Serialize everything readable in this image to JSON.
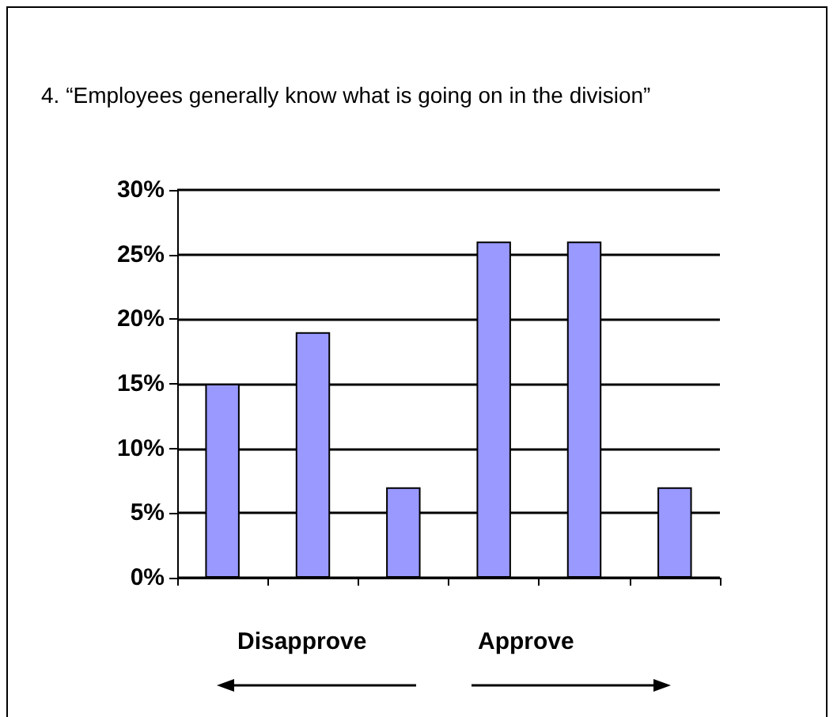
{
  "chart_data": {
    "type": "bar",
    "title": "4. “Employees generally know what is going on in the division”",
    "categories": [
      null,
      null,
      null,
      null,
      null,
      null
    ],
    "values": [
      15,
      19,
      7,
      26,
      26,
      7
    ],
    "color": "#9999ff",
    "ylim": [
      0,
      30
    ],
    "yticks": [
      {
        "value": 0,
        "label": "0%"
      },
      {
        "value": 5,
        "label": "5%"
      },
      {
        "value": 10,
        "label": "10%"
      },
      {
        "value": 15,
        "label": "15%"
      },
      {
        "value": 20,
        "label": "20%"
      },
      {
        "value": 25,
        "label": "25%"
      },
      {
        "value": 30,
        "label": "30%"
      }
    ],
    "grid": "y",
    "annotations": [
      "Disapprove",
      "Approve"
    ]
  }
}
